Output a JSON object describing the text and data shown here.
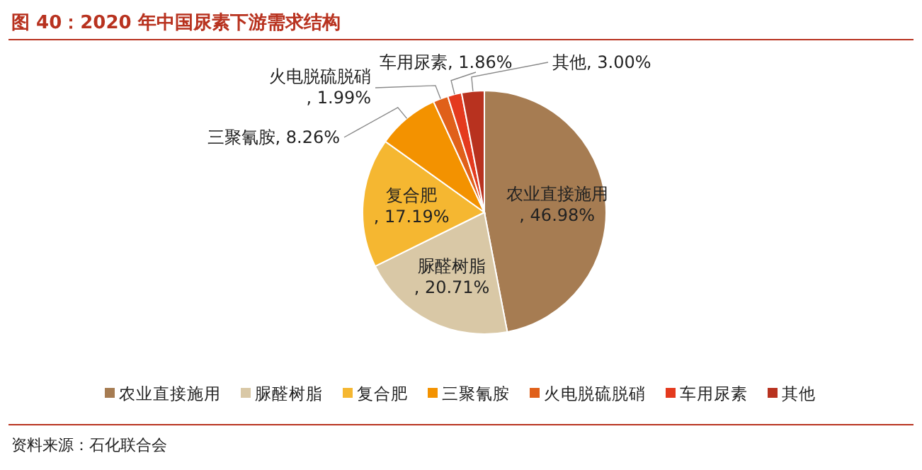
{
  "chart_data": {
    "type": "pie",
    "title": "图 40：2020 年中国尿素下游需求结构",
    "categories": [
      "农业直接施用",
      "脲醛树脂",
      "复合肥",
      "三聚氰胺",
      "火电脱硫脱硝",
      "车用尿素",
      "其他"
    ],
    "values": [
      46.98,
      20.71,
      17.19,
      8.26,
      1.99,
      1.86,
      3.0
    ],
    "colors": [
      "#a67c52",
      "#d9c8a6",
      "#f5b731",
      "#f39200",
      "#e0601a",
      "#e43a1e",
      "#b8321f"
    ],
    "value_labels": [
      ", 46.98%",
      ", 20.71%",
      ", 17.19%",
      ", 8.26%",
      ", 1.99%",
      ", 1.86%",
      ", 3.00%"
    ],
    "legend": "bottom",
    "annotations": [
      "资料来源：石化联合会"
    ]
  }
}
